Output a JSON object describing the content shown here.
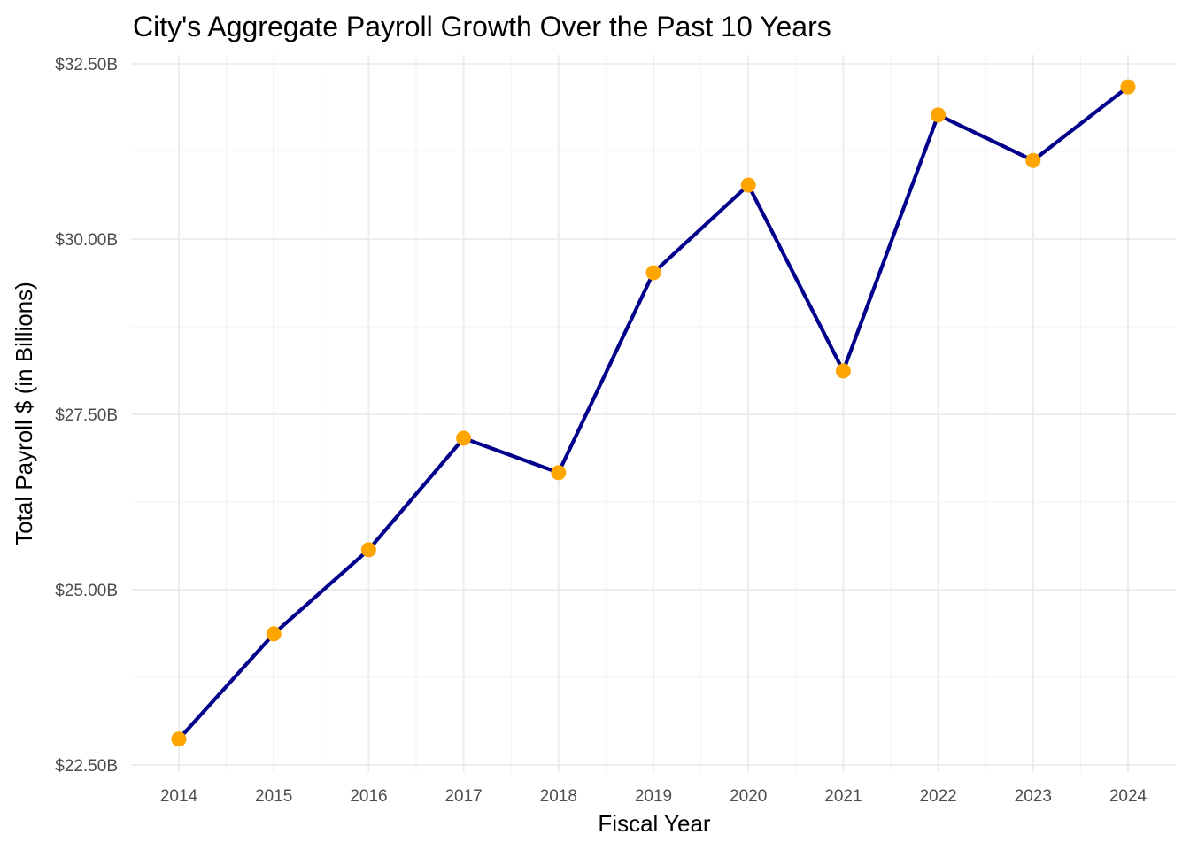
{
  "chart_data": {
    "type": "line",
    "title": "City's Aggregate Payroll Growth Over the Past 10 Years",
    "xlabel": "Fiscal Year",
    "ylabel": "Total Payroll $ (in Billions)",
    "x": [
      2014,
      2015,
      2016,
      2017,
      2018,
      2019,
      2020,
      2021,
      2022,
      2023,
      2024
    ],
    "x_tick_labels": [
      "2014",
      "2015",
      "2016",
      "2017",
      "2018",
      "2019",
      "2020",
      "2021",
      "2022",
      "2023",
      "2024"
    ],
    "series": [
      {
        "values": [
          22.87,
          24.37,
          25.57,
          27.16,
          26.67,
          29.52,
          30.77,
          28.12,
          31.77,
          31.12,
          32.17
        ]
      }
    ],
    "y_ticks": [
      22.5,
      25.0,
      27.5,
      30.0,
      32.5
    ],
    "y_tick_labels": [
      "$22.50B",
      "$25.00B",
      "$27.50B",
      "$30.00B",
      "$32.50B"
    ],
    "xlim": [
      2013.5,
      2024.5
    ],
    "ylim": [
      22.5,
      32.5
    ],
    "grid": true,
    "legend": "none",
    "colors": {
      "line": "#00008b",
      "point": "#ffa500",
      "grid": "#ebebeb"
    }
  }
}
